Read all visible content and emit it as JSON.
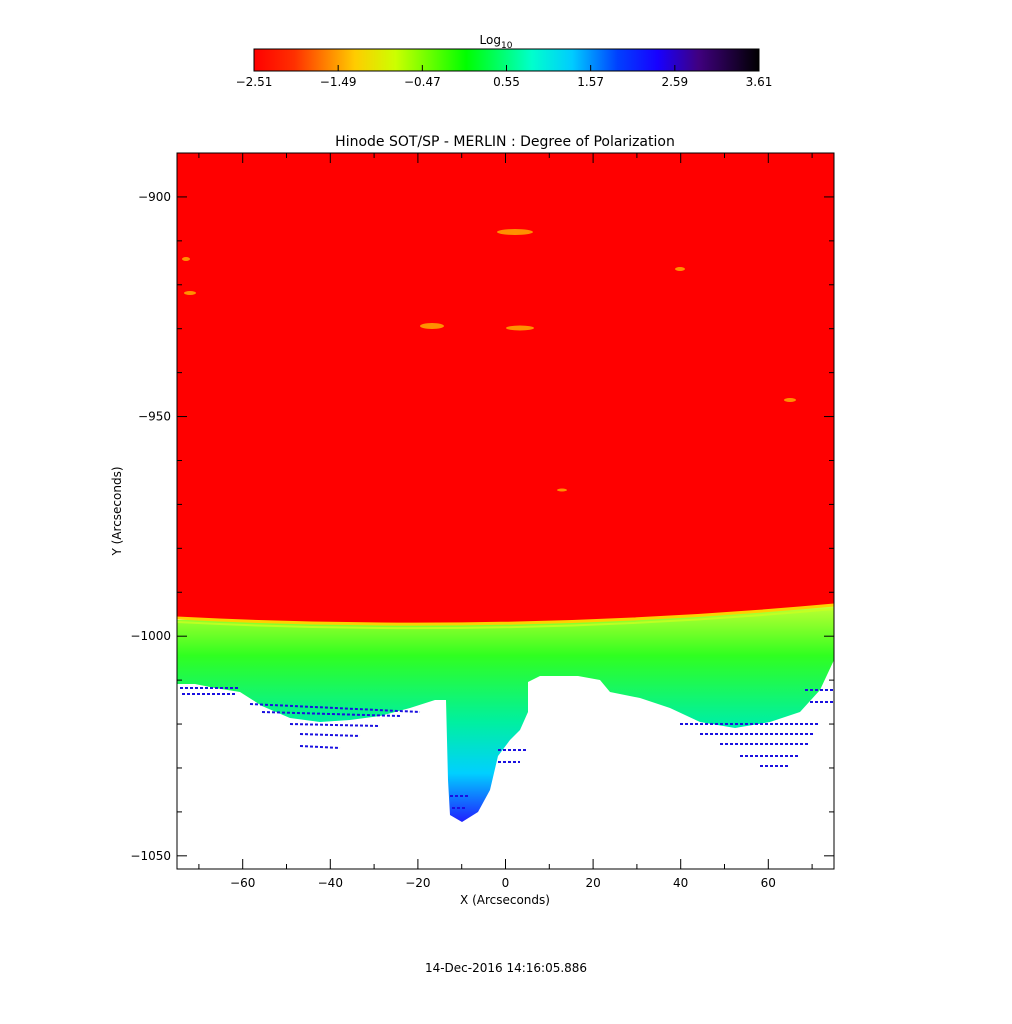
{
  "chart_data": {
    "type": "heatmap",
    "title": "Hinode SOT/SP - MERLIN : Degree of Polarization",
    "xlabel": "X (Arcseconds)",
    "ylabel": "Y (Arcseconds)",
    "xlim": [
      -75,
      75
    ],
    "ylim": [
      -1053,
      -890
    ],
    "x_ticks": [
      -60,
      -40,
      -20,
      0,
      20,
      40,
      60
    ],
    "y_ticks": [
      -900,
      -950,
      -1000,
      -1050
    ],
    "colorbar": {
      "title_base": "Log",
      "title_sub": "10",
      "range": [
        -2.51,
        3.61
      ],
      "ticks": [
        "-2.51",
        "-1.49",
        "-0.47",
        "0.55",
        "1.57",
        "2.59",
        "3.61"
      ],
      "colormap": [
        "#ff0000",
        "#ff8000",
        "#ffff00",
        "#00ff00",
        "#00ffff",
        "#0000ff",
        "#4b0082",
        "#000000"
      ]
    },
    "limb_y": -997,
    "regions": [
      {
        "name": "disk",
        "value_log10": -2.51,
        "color": "#ff0000"
      },
      {
        "name": "limb",
        "value_log10": -0.9,
        "color": "#ffff00"
      },
      {
        "name": "off-limb",
        "value_log10": 0.55,
        "color": "#00ff00"
      }
    ]
  },
  "timestamp": "14-Dec-2016 14:16:05.886"
}
